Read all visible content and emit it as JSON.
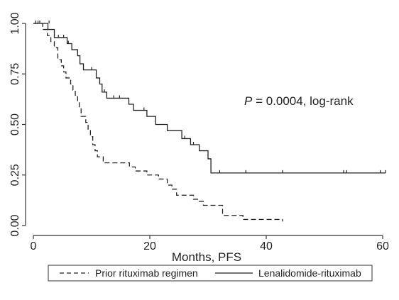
{
  "chart_data": {
    "type": "line",
    "subtype": "kaplan-meier",
    "xlabel": "Months, PFS",
    "ylabel": "",
    "xlim": [
      0,
      60
    ],
    "ylim": [
      0,
      1
    ],
    "xticks": [
      0,
      20,
      40,
      60
    ],
    "yticks": [
      0.0,
      0.25,
      0.5,
      0.75,
      1.0
    ],
    "xtick_labels": [
      "0",
      "20",
      "40",
      "60"
    ],
    "ytick_labels": [
      "0.00",
      "0.25",
      "0.50",
      "0.75",
      "1.00"
    ],
    "grid": false,
    "legend_position": "bottom",
    "annotation": {
      "p_symbol": "P",
      "rest": " = 0.0004, log-rank"
    },
    "series": [
      {
        "name": "Prior rituximab regimen",
        "style": "dashed",
        "color": "#222222",
        "steps": [
          [
            0,
            1.0
          ],
          [
            1.6,
            0.97
          ],
          [
            2.4,
            0.94
          ],
          [
            3.0,
            0.91
          ],
          [
            3.6,
            0.88
          ],
          [
            4.2,
            0.82
          ],
          [
            4.8,
            0.79
          ],
          [
            5.2,
            0.76
          ],
          [
            5.6,
            0.73
          ],
          [
            6.4,
            0.7
          ],
          [
            6.8,
            0.67
          ],
          [
            7.2,
            0.64
          ],
          [
            7.6,
            0.61
          ],
          [
            7.9,
            0.58
          ],
          [
            8.2,
            0.54
          ],
          [
            9.0,
            0.51
          ],
          [
            9.4,
            0.47
          ],
          [
            9.8,
            0.44
          ],
          [
            10.2,
            0.4
          ],
          [
            10.6,
            0.37
          ],
          [
            11.0,
            0.34
          ],
          [
            12.0,
            0.31
          ],
          [
            16.5,
            0.29
          ],
          [
            17.5,
            0.27
          ],
          [
            19.5,
            0.25
          ],
          [
            21.5,
            0.23
          ],
          [
            23.0,
            0.2
          ],
          [
            23.8,
            0.18
          ],
          [
            24.6,
            0.15
          ],
          [
            27.5,
            0.13
          ],
          [
            28.5,
            0.12
          ],
          [
            29.2,
            0.1
          ],
          [
            32.5,
            0.05
          ],
          [
            36.0,
            0.03
          ],
          [
            42.8,
            0.02
          ]
        ],
        "censored": []
      },
      {
        "name": "Lenalidomide-rituximab",
        "style": "solid",
        "color": "#222222",
        "steps": [
          [
            0,
            1.0
          ],
          [
            2.5,
            0.97
          ],
          [
            3.6,
            0.93
          ],
          [
            5.8,
            0.9
          ],
          [
            6.6,
            0.87
          ],
          [
            7.6,
            0.84
          ],
          [
            8.0,
            0.8
          ],
          [
            8.6,
            0.77
          ],
          [
            10.8,
            0.73
          ],
          [
            11.4,
            0.7
          ],
          [
            11.8,
            0.66
          ],
          [
            12.6,
            0.63
          ],
          [
            16.4,
            0.6
          ],
          [
            17.2,
            0.57
          ],
          [
            19.5,
            0.54
          ],
          [
            21.0,
            0.5
          ],
          [
            23.0,
            0.47
          ],
          [
            25.5,
            0.43
          ],
          [
            27.0,
            0.4
          ],
          [
            28.5,
            0.37
          ],
          [
            30.0,
            0.33
          ],
          [
            30.5,
            0.26
          ]
        ],
        "end_x": 60.5,
        "censored": [
          [
            0.4,
            1.0
          ],
          [
            0.8,
            1.0
          ],
          [
            1.1,
            1.0
          ],
          [
            2.7,
            1.0
          ],
          [
            4.3,
            0.93
          ],
          [
            5.2,
            0.93
          ],
          [
            6.0,
            0.9
          ],
          [
            10.0,
            0.77
          ],
          [
            12.2,
            0.66
          ],
          [
            13.8,
            0.63
          ],
          [
            14.8,
            0.63
          ],
          [
            19.0,
            0.57
          ],
          [
            26.0,
            0.43
          ],
          [
            27.5,
            0.4
          ],
          [
            32.0,
            0.26
          ],
          [
            36.5,
            0.26
          ],
          [
            42.8,
            0.26
          ],
          [
            53.3,
            0.26
          ],
          [
            53.8,
            0.26
          ],
          [
            59.6,
            0.26
          ],
          [
            60.5,
            0.26
          ]
        ]
      }
    ]
  }
}
